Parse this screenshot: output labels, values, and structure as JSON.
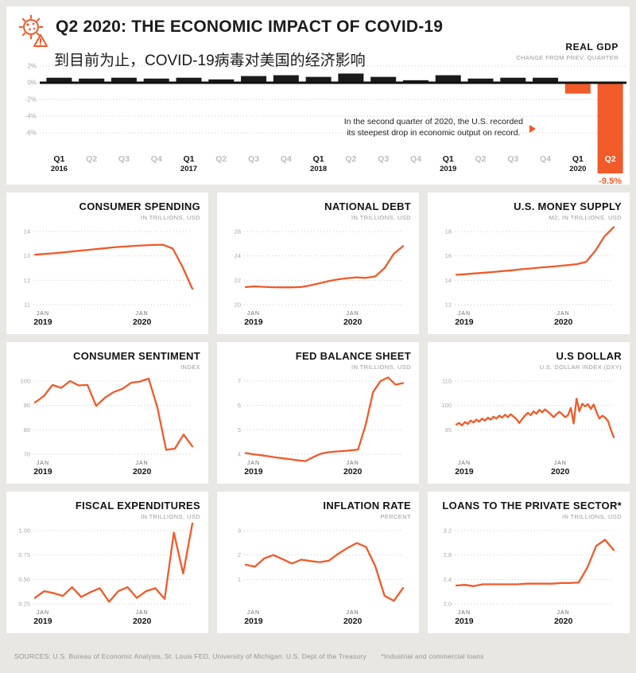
{
  "header": {
    "title": "Q2 2020: THE ECONOMIC IMPACT OF COVID-19",
    "subtitle_cn": "到目前为止，COVID-19病毒对美国的经济影响"
  },
  "colors": {
    "accent": "#F15A29",
    "bar": "#1A1A1A",
    "grid": "#CBCBCB",
    "tick": "#A8A8A8",
    "quarter_muted": "#BDBDBD",
    "quarter_dark": "#161616"
  },
  "chart_data": [
    {
      "id": "real-gdp",
      "type": "bar",
      "title": "REAL GDP",
      "subtitle": "CHANGE FROM PREV. QUARTER",
      "annotation": {
        "line1": "In the second quarter of 2020, the U.S. recorded",
        "line2": "its steepest drop in economic output on record.",
        "arrow_icon": "right-arrow-icon"
      },
      "yticks": [
        {
          "label": "2%",
          "v": 2
        },
        {
          "label": "0%",
          "v": 0
        },
        {
          "label": "-2%",
          "v": -2
        },
        {
          "label": "-4%",
          "v": -4
        },
        {
          "label": "-6%",
          "v": -6
        }
      ],
      "categories": [
        {
          "q": "Q1",
          "year": "2016"
        },
        {
          "q": "Q2",
          "year": ""
        },
        {
          "q": "Q3",
          "year": ""
        },
        {
          "q": "Q4",
          "year": ""
        },
        {
          "q": "Q1",
          "year": "2017"
        },
        {
          "q": "Q2",
          "year": ""
        },
        {
          "q": "Q3",
          "year": ""
        },
        {
          "q": "Q4",
          "year": ""
        },
        {
          "q": "Q1",
          "year": "2018"
        },
        {
          "q": "Q2",
          "year": ""
        },
        {
          "q": "Q3",
          "year": ""
        },
        {
          "q": "Q4",
          "year": ""
        },
        {
          "q": "Q1",
          "year": "2019"
        },
        {
          "q": "Q2",
          "year": ""
        },
        {
          "q": "Q3",
          "year": ""
        },
        {
          "q": "Q4",
          "year": ""
        },
        {
          "q": "Q1",
          "year": "2020"
        },
        {
          "q": "Q2",
          "year": "",
          "label_inside": true,
          "annotation": "-9.5%"
        }
      ],
      "values": [
        0.6,
        0.5,
        0.6,
        0.5,
        0.6,
        0.4,
        0.8,
        0.9,
        0.7,
        1.1,
        0.7,
        0.3,
        0.9,
        0.5,
        0.6,
        0.6,
        -1.3,
        -9.5
      ]
    },
    {
      "id": "consumer-spending",
      "type": "line",
      "title": "CONSUMER SPENDING",
      "subtitle": "IN TRILLIONS, USD",
      "yticks": [
        {
          "label": "14",
          "v": 14
        },
        {
          "label": "13",
          "v": 13
        },
        {
          "label": "12",
          "v": 12
        },
        {
          "label": "11",
          "v": 11
        }
      ],
      "values": [
        13.05,
        13.08,
        13.11,
        13.15,
        13.19,
        13.23,
        13.27,
        13.31,
        13.35,
        13.38,
        13.41,
        13.43,
        13.45,
        13.46,
        13.3,
        12.55,
        11.65
      ],
      "xlabels": [
        {
          "top": "JAN",
          "bottom": "2019",
          "frac": 0.05
        },
        {
          "top": "JAN",
          "bottom": "2020",
          "frac": 0.68
        }
      ]
    },
    {
      "id": "national-debt",
      "type": "line",
      "title": "NATIONAL DEBT",
      "subtitle": "IN TRILLIONS, USD",
      "yticks": [
        {
          "label": "28",
          "v": 28
        },
        {
          "label": "24",
          "v": 24
        },
        {
          "label": "22",
          "v": 22
        },
        {
          "label": "20",
          "v": 20
        }
      ],
      "values": [
        21.45,
        21.5,
        21.46,
        21.43,
        21.42,
        21.42,
        21.45,
        21.58,
        21.76,
        21.94,
        22.08,
        22.18,
        22.24,
        22.2,
        22.32,
        23.0,
        24.35,
        25.6
      ],
      "xlabels": [
        {
          "top": "JAN",
          "bottom": "2019",
          "frac": 0.05
        },
        {
          "top": "JAN",
          "bottom": "2020",
          "frac": 0.68
        }
      ]
    },
    {
      "id": "us-money-supply",
      "type": "line",
      "title": "U.S. MONEY SUPPLY",
      "subtitle": "M2, IN TRILLIONS, USD",
      "yticks": [
        {
          "label": "18",
          "v": 18
        },
        {
          "label": "16",
          "v": 16
        },
        {
          "label": "14",
          "v": 14
        },
        {
          "label": "12",
          "v": 12
        }
      ],
      "values": [
        14.45,
        14.5,
        14.56,
        14.62,
        14.68,
        14.75,
        14.82,
        14.9,
        14.97,
        15.04,
        15.1,
        15.17,
        15.24,
        15.32,
        15.5,
        16.4,
        17.6,
        18.35
      ],
      "xlabels": [
        {
          "top": "JAN",
          "bottom": "2019",
          "frac": 0.05
        },
        {
          "top": "JAN",
          "bottom": "2020",
          "frac": 0.68
        }
      ]
    },
    {
      "id": "consumer-sentiment",
      "type": "line",
      "title": "CONSUMER SENTIMENT",
      "subtitle": "INDEX",
      "yticks": [
        {
          "label": "100",
          "v": 100
        },
        {
          "label": "90",
          "v": 90
        },
        {
          "label": "80",
          "v": 80
        },
        {
          "label": "70",
          "v": 70
        }
      ],
      "values": [
        91.2,
        93.8,
        98.4,
        97.2,
        100.0,
        98.2,
        98.4,
        89.8,
        93.2,
        95.5,
        96.8,
        99.3,
        99.8,
        101.0,
        89.1,
        71.8,
        72.3,
        78.1,
        73.2
      ],
      "xlabels": [
        {
          "top": "JAN",
          "bottom": "2019",
          "frac": 0.05
        },
        {
          "top": "JAN",
          "bottom": "2020",
          "frac": 0.68
        }
      ]
    },
    {
      "id": "fed-balance-sheet",
      "type": "line",
      "title": "FED BALANCE SHEET",
      "subtitle": "IN TRILLIONS, USD",
      "yticks": [
        {
          "label": "7",
          "v": 7
        },
        {
          "label": "6",
          "v": 6
        },
        {
          "label": "5",
          "v": 5
        },
        {
          "label": "4",
          "v": 4
        }
      ],
      "values": [
        4.05,
        4.0,
        3.96,
        3.92,
        3.87,
        3.83,
        3.79,
        3.75,
        3.72,
        3.88,
        4.02,
        4.08,
        4.11,
        4.13,
        4.16,
        4.19,
        5.2,
        6.55,
        7.0,
        7.15,
        6.85,
        6.92
      ],
      "xlabels": [
        {
          "top": "JAN",
          "bottom": "2019",
          "frac": 0.05
        },
        {
          "top": "JAN",
          "bottom": "2020",
          "frac": 0.68
        }
      ]
    },
    {
      "id": "us-dollar",
      "type": "line",
      "title": "U.S DOLLAR",
      "subtitle": "U.S. DOLLAR INDEX (DXY)",
      "yticks": [
        {
          "label": "110",
          "v": 110
        },
        {
          "label": "100",
          "v": 100
        },
        {
          "label": "95",
          "v": 95
        }
      ],
      "values": [
        96.1,
        96.4,
        95.9,
        96.6,
        96.2,
        96.9,
        96.5,
        97.1,
        96.7,
        97.3,
        96.9,
        97.5,
        97.1,
        97.7,
        97.3,
        97.9,
        97.5,
        98.1,
        97.6,
        98.2,
        97.7,
        97.2,
        96.4,
        97.2,
        97.9,
        98.5,
        98.0,
        98.8,
        98.3,
        99.1,
        98.6,
        99.2,
        98.7,
        98.2,
        97.6,
        98.2,
        98.7,
        98.2,
        97.6,
        98.0,
        99.5,
        96.3,
        102.8,
        98.8,
        100.7,
        99.8,
        100.5,
        99.3,
        100.4,
        98.6,
        97.3,
        97.9,
        97.5,
        96.8,
        95.0,
        93.5
      ],
      "xlabels": [
        {
          "top": "JAN",
          "bottom": "2019",
          "frac": 0.05
        },
        {
          "top": "JAN",
          "bottom": "2020",
          "frac": 0.66
        }
      ]
    },
    {
      "id": "fiscal-expenditures",
      "type": "line",
      "title": "FISCAL EXPENDITURES",
      "subtitle": "IN TRILLIONS, USD",
      "yticks": [
        {
          "label": "1.00",
          "v": 1.0
        },
        {
          "label": "0.75",
          "v": 0.75
        },
        {
          "label": "0.50",
          "v": 0.5
        },
        {
          "label": "0.25",
          "v": 0.25
        }
      ],
      "values": [
        0.31,
        0.38,
        0.36,
        0.33,
        0.42,
        0.32,
        0.37,
        0.41,
        0.27,
        0.38,
        0.42,
        0.31,
        0.38,
        0.41,
        0.3,
        0.98,
        0.56,
        1.1
      ],
      "xlabels": [
        {
          "top": "JAN",
          "bottom": "2019",
          "frac": 0.05
        },
        {
          "top": "JAN",
          "bottom": "2020",
          "frac": 0.68
        }
      ]
    },
    {
      "id": "inflation-rate",
      "type": "line",
      "title": "INFLATION RATE",
      "subtitle": "PERCENT",
      "yticks": [
        {
          "label": "3",
          "v": 3
        },
        {
          "label": "2",
          "v": 2
        },
        {
          "label": "1",
          "v": 1
        }
      ],
      "values": [
        1.6,
        1.52,
        1.86,
        2.0,
        1.83,
        1.65,
        1.81,
        1.75,
        1.71,
        1.77,
        2.05,
        2.29,
        2.49,
        2.33,
        1.54,
        0.33,
        0.12,
        0.65
      ],
      "xlabels": [
        {
          "top": "JAN",
          "bottom": "2019",
          "frac": 0.05
        },
        {
          "top": "JAN",
          "bottom": "2020",
          "frac": 0.68
        }
      ]
    },
    {
      "id": "loans-private-sector",
      "type": "line",
      "title": "LOANS TO THE PRIVATE SECTOR*",
      "subtitle": "IN TRILLIONS, USD",
      "yticks": [
        {
          "label": "3.2",
          "v": 3.2
        },
        {
          "label": "2.8",
          "v": 2.8
        },
        {
          "label": "2.4",
          "v": 2.4
        },
        {
          "label": "2.0",
          "v": 2.0
        }
      ],
      "values": [
        2.3,
        2.31,
        2.29,
        2.32,
        2.32,
        2.32,
        2.32,
        2.32,
        2.33,
        2.33,
        2.33,
        2.33,
        2.34,
        2.34,
        2.35,
        2.6,
        2.95,
        3.05,
        2.88
      ],
      "xlabels": [
        {
          "top": "JAN",
          "bottom": "2019",
          "frac": 0.05
        },
        {
          "top": "JAN",
          "bottom": "2020",
          "frac": 0.68
        }
      ]
    }
  ],
  "footer": {
    "sources": "SOURCES: U.S. Bureau of Economic Analysis, St. Louis FED, University of Michigan, U.S. Dept of the Treasury",
    "note": "*Industrial and commercial loans"
  }
}
